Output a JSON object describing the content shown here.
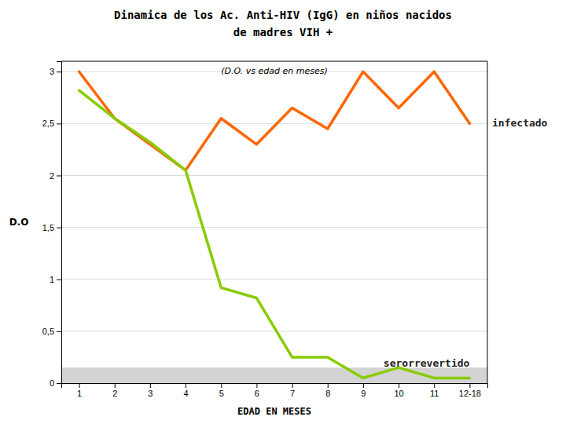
{
  "chart_data": {
    "type": "line",
    "title": [
      "Dinamica de los Ac.  Anti-HIV (IgG) en niños nacidos",
      "de madres VIH +"
    ],
    "subtitle": "(D.O.  vs edad en meses)",
    "x_label": "EDAD EN MESES",
    "y_label": "D.O",
    "x": [
      1,
      2,
      3,
      4,
      5,
      6,
      7,
      8,
      9,
      10,
      11,
      12
    ],
    "series": [
      {
        "name": "infectado",
        "color": "#FF6600",
        "values": [
          3.0,
          2.55,
          2.3,
          2.05,
          2.55,
          2.3,
          2.65,
          2.45,
          3.0,
          2.65,
          3.0,
          2.5
        ]
      },
      {
        "name": "serorrevertido",
        "color": "#88CC00",
        "values": [
          2.82,
          2.55,
          2.32,
          2.05,
          0.92,
          0.82,
          0.25,
          0.25,
          0.05,
          0.15,
          0.05,
          0.05
        ]
      }
    ],
    "shaded_band": {
      "y": [
        0,
        0.15
      ],
      "color": "#D3D3D3"
    },
    "xlim": [
      0.5,
      12.5
    ],
    "xticks": [
      1,
      2,
      3,
      4,
      5,
      6,
      7,
      8,
      9,
      10,
      11,
      {
        "value": 12,
        "label": "12-18"
      }
    ],
    "ylim": [
      0,
      3.1
    ],
    "yticks": [
      0,
      {
        "value": 0.5,
        "label": "0,5"
      },
      1,
      {
        "value": 1.5,
        "label": "1,5"
      },
      2,
      {
        "value": 2.5,
        "label": "2,5"
      },
      3
    ],
    "grid": true
  }
}
